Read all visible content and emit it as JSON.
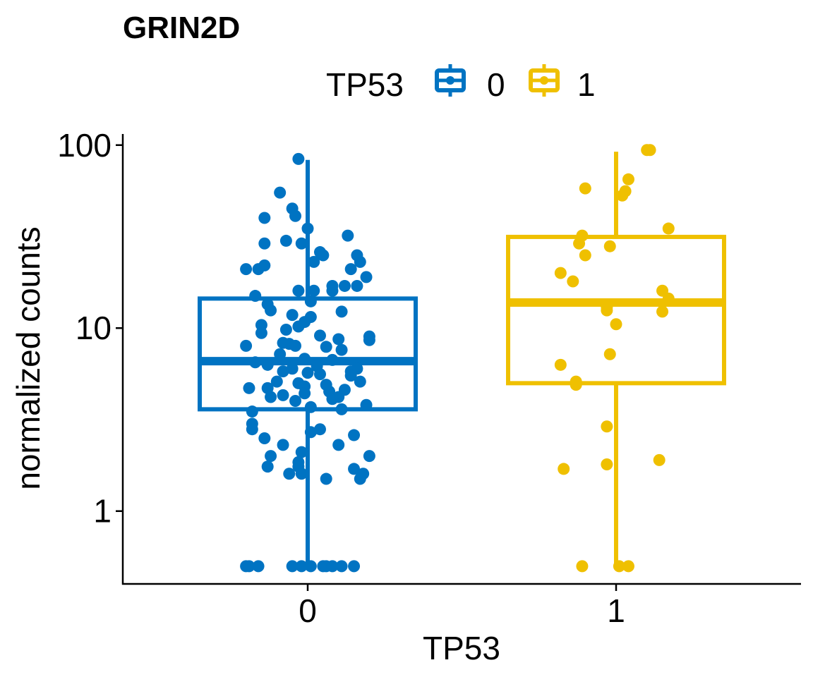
{
  "chart_data": {
    "type": "box",
    "title": "GRIN2D",
    "xlabel": "TP53",
    "ylabel": "normalized counts",
    "y_scale": "log10",
    "ylim": [
      0.4,
      115
    ],
    "y_ticks": [
      {
        "value": 1,
        "label": "1"
      },
      {
        "value": 10,
        "label": "10"
      },
      {
        "value": 100,
        "label": "100"
      }
    ],
    "categories": [
      "0",
      "1"
    ],
    "legend": {
      "title": "TP53",
      "position": "top"
    },
    "series": [
      {
        "name": "0",
        "color": "#0073C2",
        "box": {
          "whisker_low": 0.5,
          "q1": 3.6,
          "median": 6.6,
          "q3": 14.5,
          "whisker_high": 83
        },
        "points": [
          {
            "dx": -0.03,
            "y": 84
          },
          {
            "dx": -0.09,
            "y": 55
          },
          {
            "dx": -0.05,
            "y": 45
          },
          {
            "dx": -0.04,
            "y": 41
          },
          {
            "dx": -0.14,
            "y": 40
          },
          {
            "dx": 0.0,
            "y": 35
          },
          {
            "dx": 0.13,
            "y": 32
          },
          {
            "dx": -0.07,
            "y": 30
          },
          {
            "dx": -0.02,
            "y": 29
          },
          {
            "dx": -0.14,
            "y": 29
          },
          {
            "dx": 0.04,
            "y": 26
          },
          {
            "dx": 0.05,
            "y": 25
          },
          {
            "dx": 0.16,
            "y": 25
          },
          {
            "dx": 0.02,
            "y": 23
          },
          {
            "dx": 0.17,
            "y": 23
          },
          {
            "dx": -0.14,
            "y": 22
          },
          {
            "dx": -0.2,
            "y": 21
          },
          {
            "dx": -0.16,
            "y": 21
          },
          {
            "dx": 0.14,
            "y": 21
          },
          {
            "dx": 0.19,
            "y": 19
          },
          {
            "dx": 0.08,
            "y": 17
          },
          {
            "dx": 0.12,
            "y": 17
          },
          {
            "dx": 0.16,
            "y": 17
          },
          {
            "dx": -0.03,
            "y": 16
          },
          {
            "dx": 0.02,
            "y": 16
          },
          {
            "dx": 0.08,
            "y": 16
          },
          {
            "dx": -0.17,
            "y": 15
          },
          {
            "dx": 0.01,
            "y": 14
          },
          {
            "dx": -0.13,
            "y": 13.5
          },
          {
            "dx": -0.12,
            "y": 12.5
          },
          {
            "dx": 0.11,
            "y": 12.3
          },
          {
            "dx": -0.05,
            "y": 11.8
          },
          {
            "dx": 0.01,
            "y": 11.5
          },
          {
            "dx": -0.01,
            "y": 10.8
          },
          {
            "dx": -0.15,
            "y": 10.4
          },
          {
            "dx": -0.03,
            "y": 10.2
          },
          {
            "dx": -0.07,
            "y": 9.8
          },
          {
            "dx": -0.15,
            "y": 9.4
          },
          {
            "dx": 0.04,
            "y": 9.1
          },
          {
            "dx": 0.2,
            "y": 9.0
          },
          {
            "dx": 0.1,
            "y": 8.7
          },
          {
            "dx": 0.2,
            "y": 8.6
          },
          {
            "dx": -0.08,
            "y": 8.3
          },
          {
            "dx": -0.06,
            "y": 8.2
          },
          {
            "dx": -0.04,
            "y": 8.0
          },
          {
            "dx": -0.2,
            "y": 8.0
          },
          {
            "dx": 0.06,
            "y": 7.9
          },
          {
            "dx": 0.11,
            "y": 7.6
          },
          {
            "dx": -0.09,
            "y": 7.2
          },
          {
            "dx": -0.01,
            "y": 6.8
          },
          {
            "dx": 0.08,
            "y": 6.7
          },
          {
            "dx": -0.17,
            "y": 6.5
          },
          {
            "dx": -0.13,
            "y": 6.3
          },
          {
            "dx": 0.03,
            "y": 6.2
          },
          {
            "dx": -0.05,
            "y": 6.0
          },
          {
            "dx": 0.16,
            "y": 6.0
          },
          {
            "dx": -0.08,
            "y": 5.8
          },
          {
            "dx": 0.14,
            "y": 5.8
          },
          {
            "dx": 0.0,
            "y": 5.7
          },
          {
            "dx": 0.04,
            "y": 5.6
          },
          {
            "dx": 0.14,
            "y": 5.5
          },
          {
            "dx": 0.17,
            "y": 5.1
          },
          {
            "dx": -0.1,
            "y": 5.1
          },
          {
            "dx": -0.03,
            "y": 5.0
          },
          {
            "dx": 0.06,
            "y": 4.9
          },
          {
            "dx": -0.01,
            "y": 4.8
          },
          {
            "dx": -0.13,
            "y": 4.7
          },
          {
            "dx": -0.19,
            "y": 4.7
          },
          {
            "dx": 0.12,
            "y": 4.6
          },
          {
            "dx": 0.07,
            "y": 4.5
          },
          {
            "dx": -0.01,
            "y": 4.4
          },
          {
            "dx": -0.08,
            "y": 4.3
          },
          {
            "dx": -0.12,
            "y": 4.2
          },
          {
            "dx": 0.1,
            "y": 4.2
          },
          {
            "dx": 0.08,
            "y": 4.1
          },
          {
            "dx": -0.04,
            "y": 4.0
          },
          {
            "dx": 0.19,
            "y": 3.8
          },
          {
            "dx": 0.01,
            "y": 3.7
          },
          {
            "dx": 0.11,
            "y": 3.6
          },
          {
            "dx": -0.18,
            "y": 3.5
          },
          {
            "dx": -0.18,
            "y": 3.0
          },
          {
            "dx": -0.18,
            "y": 2.8
          },
          {
            "dx": 0.04,
            "y": 2.8
          },
          {
            "dx": 0.01,
            "y": 2.7
          },
          {
            "dx": 0.15,
            "y": 2.6
          },
          {
            "dx": -0.14,
            "y": 2.5
          },
          {
            "dx": 0.1,
            "y": 2.3
          },
          {
            "dx": -0.08,
            "y": 2.3
          },
          {
            "dx": -0.02,
            "y": 2.1
          },
          {
            "dx": 0.2,
            "y": 2.0
          },
          {
            "dx": -0.12,
            "y": 2.0
          },
          {
            "dx": -0.03,
            "y": 1.85
          },
          {
            "dx": -0.03,
            "y": 1.75
          },
          {
            "dx": -0.13,
            "y": 1.75
          },
          {
            "dx": 0.15,
            "y": 1.7
          },
          {
            "dx": 0.18,
            "y": 1.6
          },
          {
            "dx": -0.06,
            "y": 1.6
          },
          {
            "dx": -0.02,
            "y": 1.6
          },
          {
            "dx": 0.06,
            "y": 1.5
          },
          {
            "dx": 0.17,
            "y": 1.5
          },
          {
            "dx": -0.2,
            "y": 0.5
          },
          {
            "dx": -0.19,
            "y": 0.5
          },
          {
            "dx": -0.16,
            "y": 0.5
          },
          {
            "dx": -0.05,
            "y": 0.5
          },
          {
            "dx": -0.02,
            "y": 0.5
          },
          {
            "dx": 0.01,
            "y": 0.5
          },
          {
            "dx": 0.05,
            "y": 0.5
          },
          {
            "dx": 0.06,
            "y": 0.5
          },
          {
            "dx": 0.08,
            "y": 0.5
          },
          {
            "dx": 0.11,
            "y": 0.5
          },
          {
            "dx": 0.15,
            "y": 0.5
          }
        ]
      },
      {
        "name": "1",
        "color": "#EFC000",
        "box": {
          "whisker_low": 0.5,
          "q1": 5.0,
          "median": 13.8,
          "q3": 31.5,
          "whisker_high": 92
        },
        "points": [
          {
            "dx": 0.1,
            "y": 94
          },
          {
            "dx": 0.11,
            "y": 94
          },
          {
            "dx": 0.04,
            "y": 65
          },
          {
            "dx": -0.1,
            "y": 58
          },
          {
            "dx": 0.03,
            "y": 56
          },
          {
            "dx": 0.02,
            "y": 53
          },
          {
            "dx": 0.17,
            "y": 35
          },
          {
            "dx": -0.11,
            "y": 32
          },
          {
            "dx": -0.12,
            "y": 29
          },
          {
            "dx": -0.02,
            "y": 28
          },
          {
            "dx": -0.1,
            "y": 25
          },
          {
            "dx": -0.18,
            "y": 20
          },
          {
            "dx": -0.14,
            "y": 18
          },
          {
            "dx": 0.15,
            "y": 16
          },
          {
            "dx": 0.17,
            "y": 14.5
          },
          {
            "dx": -0.03,
            "y": 13
          },
          {
            "dx": -0.03,
            "y": 12.5
          },
          {
            "dx": 0.15,
            "y": 12.3
          },
          {
            "dx": 0.0,
            "y": 10.5
          },
          {
            "dx": -0.02,
            "y": 7.2
          },
          {
            "dx": -0.18,
            "y": 6.3
          },
          {
            "dx": -0.13,
            "y": 5.1
          },
          {
            "dx": -0.13,
            "y": 4.9
          },
          {
            "dx": -0.03,
            "y": 2.9
          },
          {
            "dx": 0.14,
            "y": 1.9
          },
          {
            "dx": -0.03,
            "y": 1.8
          },
          {
            "dx": -0.17,
            "y": 1.7
          },
          {
            "dx": -0.11,
            "y": 0.5
          },
          {
            "dx": 0.01,
            "y": 0.5
          },
          {
            "dx": 0.04,
            "y": 0.5
          }
        ]
      }
    ]
  }
}
